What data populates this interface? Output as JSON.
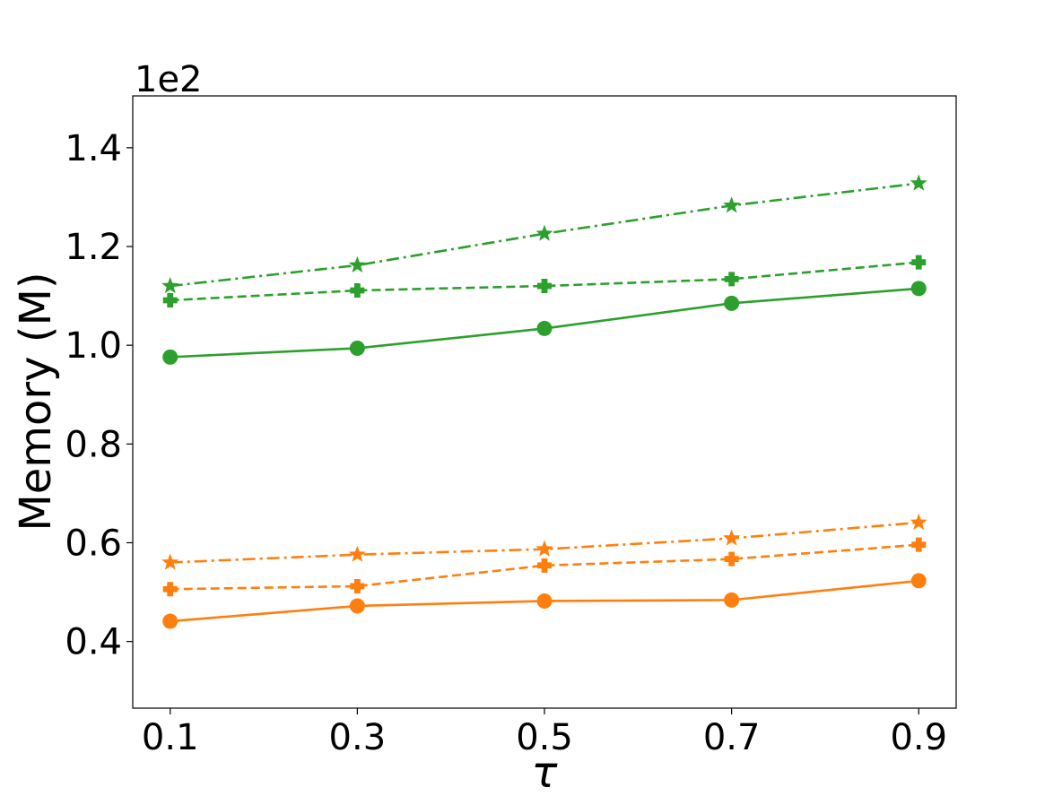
{
  "chart_data": {
    "type": "line",
    "title": "",
    "xlabel": "τ",
    "ylabel": "Memory (M)",
    "y_offset_label": "1e2",
    "x": [
      0.1,
      0.3,
      0.5,
      0.7,
      0.9
    ],
    "x_tick_labels": [
      "0.1",
      "0.3",
      "0.5",
      "0.7",
      "0.9"
    ],
    "y_ticks": [
      0.4,
      0.6,
      0.8,
      1.0,
      1.2,
      1.4
    ],
    "y_tick_labels": [
      "0.4",
      "0.6",
      "0.8",
      "1.0",
      "1.2",
      "1.4"
    ],
    "xlim": [
      0.06,
      0.94
    ],
    "ylim": [
      0.265,
      1.505
    ],
    "grid": false,
    "legend": "none",
    "colors": {
      "green": "#2ca02c",
      "orange": "#ff7f0e"
    },
    "series": [
      {
        "color": "#2ca02c",
        "line": "dashdot",
        "marker": "star",
        "values": [
          1.12,
          1.162,
          1.226,
          1.283,
          1.328
        ]
      },
      {
        "color": "#2ca02c",
        "line": "dashed",
        "marker": "plus",
        "values": [
          1.091,
          1.111,
          1.12,
          1.134,
          1.168
        ]
      },
      {
        "color": "#2ca02c",
        "line": "solid",
        "marker": "circle",
        "values": [
          0.976,
          0.994,
          1.034,
          1.085,
          1.115
        ]
      },
      {
        "color": "#ff7f0e",
        "line": "dashdot",
        "marker": "star",
        "values": [
          0.56,
          0.576,
          0.587,
          0.609,
          0.641
        ]
      },
      {
        "color": "#ff7f0e",
        "line": "dashed",
        "marker": "plus",
        "values": [
          0.506,
          0.512,
          0.554,
          0.567,
          0.596
        ]
      },
      {
        "color": "#ff7f0e",
        "line": "solid",
        "marker": "circle",
        "values": [
          0.441,
          0.472,
          0.482,
          0.484,
          0.523
        ]
      }
    ]
  }
}
